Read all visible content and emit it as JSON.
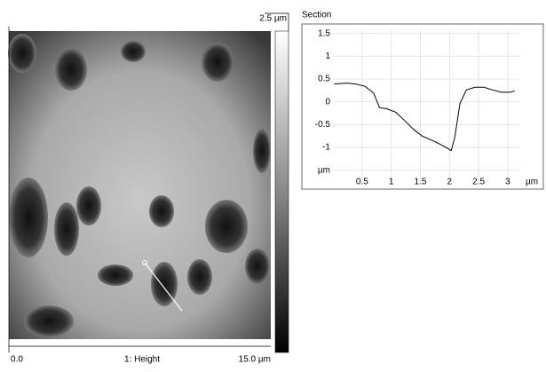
{
  "image": {
    "scale_top": "2.5 µm",
    "x_start": "0.0",
    "channel": "1: Height",
    "x_end": "15.0 µm"
  },
  "chart_data": {
    "type": "line",
    "title": "Section",
    "x_label": "µm",
    "x": [
      0.02,
      0.24,
      0.39,
      0.55,
      0.7,
      0.8,
      0.92,
      1.08,
      1.23,
      1.38,
      1.53,
      1.76,
      1.91,
      2.03,
      2.09,
      2.18,
      2.29,
      2.44,
      2.59,
      2.74,
      2.89,
      3.05,
      3.12
    ],
    "series": [
      {
        "name": "Section",
        "color": "#000000",
        "values": [
          0.39,
          0.41,
          0.39,
          0.34,
          0.19,
          -0.13,
          -0.15,
          -0.23,
          -0.41,
          -0.6,
          -0.75,
          -0.88,
          -0.98,
          -1.07,
          -0.79,
          -0.04,
          0.26,
          0.32,
          0.32,
          0.26,
          0.21,
          0.21,
          0.24
        ]
      }
    ],
    "xlim": [
      0,
      3.2
    ],
    "ylim": [
      -1.76,
      1.61
    ],
    "xticks": [
      0.5,
      1,
      1.5,
      2,
      2.5,
      3
    ],
    "yticks": [
      {
        "value": -1.5,
        "label": "µm"
      },
      -1,
      -0.5,
      0,
      0.5,
      1,
      1.5
    ],
    "grid": true
  }
}
